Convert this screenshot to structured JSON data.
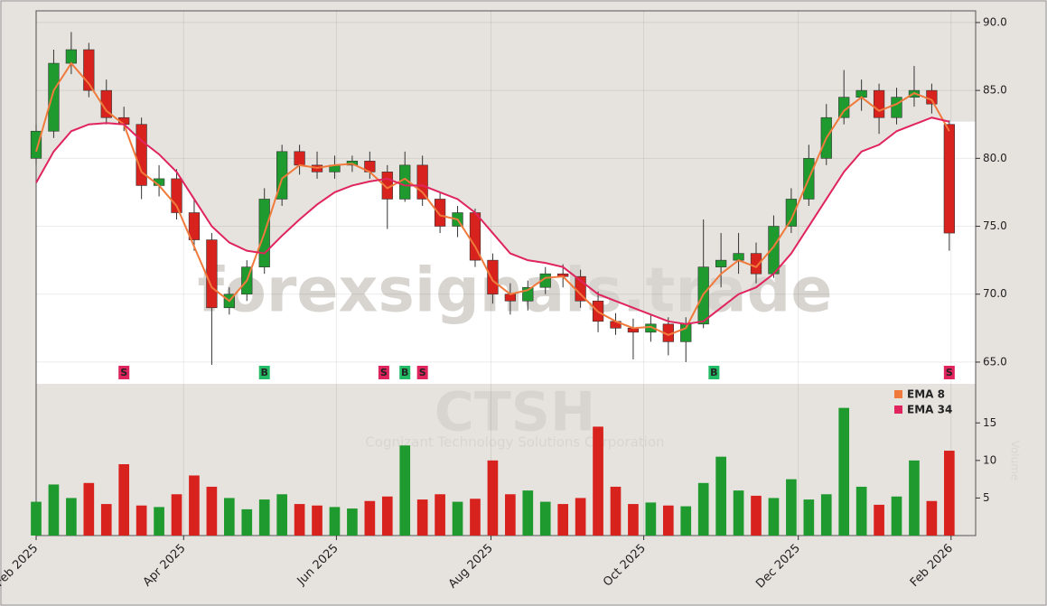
{
  "chart_data": {
    "type": "candlestick",
    "watermark": "forexsignals.trade",
    "symbol": "CTSH",
    "company": "Cognizant Technology Solutions Corporation",
    "volume_label": "Volume",
    "x": [
      0,
      1,
      2,
      3,
      4,
      5,
      6,
      7,
      8,
      9,
      10,
      11,
      12,
      13,
      14,
      15,
      16,
      17,
      18,
      19,
      20,
      21,
      22,
      23,
      24,
      25,
      26,
      27,
      28,
      29,
      30,
      31,
      32,
      33,
      34,
      35,
      36,
      37,
      38,
      39,
      40,
      41,
      42,
      43,
      44,
      45,
      46,
      47,
      48,
      49,
      50,
      51,
      52
    ],
    "open": [
      80,
      82,
      87,
      88,
      85,
      83,
      82.5,
      78,
      78.5,
      76,
      74,
      69,
      70,
      72,
      77,
      80.5,
      79.5,
      79,
      79.5,
      79.8,
      79,
      77,
      79.5,
      77,
      75,
      76,
      72.5,
      70,
      69.5,
      70.5,
      71.5,
      71.3,
      69.5,
      68,
      67.5,
      67.2,
      67.8,
      66.5,
      67.8,
      72,
      72.5,
      73,
      71.5,
      75,
      77,
      80,
      83,
      84.5,
      85,
      83,
      84.5,
      85,
      82.5
    ],
    "high": [
      82.5,
      88,
      89.3,
      88.5,
      85.8,
      83.8,
      83,
      79.5,
      79.2,
      77,
      74.5,
      70.5,
      72.5,
      77.8,
      81,
      81,
      80.5,
      80.2,
      80.2,
      80.5,
      79.5,
      80.5,
      80.2,
      77.5,
      76.5,
      76.3,
      73,
      70.8,
      71,
      72,
      72.2,
      71.8,
      70.2,
      68.6,
      68.2,
      68.5,
      68.3,
      68.3,
      75.5,
      74.5,
      74.5,
      73.8,
      75.8,
      77.8,
      81,
      84,
      86.5,
      85.8,
      85.5,
      85.2,
      86.8,
      85.5,
      82.8
    ],
    "low": [
      79.5,
      81.5,
      86.2,
      84.5,
      82.5,
      82,
      77,
      77.2,
      75.5,
      73.2,
      64.8,
      68.5,
      69.5,
      71.5,
      76.5,
      78.8,
      78.5,
      78.5,
      79,
      78.5,
      74.8,
      76.8,
      76.5,
      74.5,
      74.2,
      72,
      69.3,
      68.5,
      68.8,
      70,
      70.5,
      69,
      67.2,
      67,
      65.2,
      66.5,
      65.5,
      65,
      67.5,
      70.5,
      71.5,
      70.8,
      71.2,
      74.5,
      76.5,
      79.5,
      82.5,
      83.5,
      81.8,
      82.5,
      83.8,
      83.3,
      73.2
    ],
    "close": [
      82,
      87,
      88,
      85,
      83,
      82.5,
      78,
      78.5,
      76,
      74,
      69,
      70,
      72,
      77,
      80.5,
      79.5,
      79,
      79.5,
      79.8,
      79,
      77,
      79.5,
      77,
      75,
      76,
      72.5,
      70,
      69.5,
      70.5,
      71.5,
      71.3,
      69.5,
      68,
      67.5,
      67.2,
      67.8,
      66.5,
      67.8,
      72,
      72.5,
      73,
      71.5,
      75,
      77,
      80,
      83,
      84.5,
      85,
      83,
      84.5,
      85,
      84,
      74.5
    ],
    "volume": [
      4.5,
      6.8,
      5,
      7,
      4.2,
      9.5,
      4,
      3.8,
      5.5,
      8,
      6.5,
      5,
      3.5,
      4.8,
      5.5,
      4.2,
      4,
      3.8,
      3.6,
      4.6,
      5.2,
      12,
      4.8,
      5.5,
      4.5,
      4.9,
      10,
      5.5,
      6,
      4.5,
      4.2,
      5,
      14.5,
      6.5,
      4.2,
      4.4,
      4,
      3.9,
      7,
      10.5,
      6,
      5.3,
      5,
      7.5,
      4.8,
      5.5,
      17,
      6.5,
      4.1,
      5.2,
      10,
      4.6,
      11.3
    ],
    "series": [
      {
        "name": "EMA 8",
        "color": "#f07a3c",
        "values": [
          80.5,
          85,
          87,
          85.5,
          83.5,
          82.5,
          79,
          78,
          76.5,
          73.5,
          70.5,
          69.5,
          71,
          74.5,
          78.5,
          79.5,
          79.3,
          79.5,
          79.6,
          79,
          77.8,
          78.5,
          77.5,
          75.8,
          75.5,
          73.5,
          71,
          70,
          70.3,
          71.2,
          71.3,
          70,
          68.7,
          68,
          67.5,
          67.6,
          67,
          67.5,
          70,
          71.5,
          72.5,
          72,
          73.5,
          75.5,
          78.5,
          81.5,
          83.5,
          84.5,
          83.5,
          84,
          84.8,
          84.3,
          82
        ]
      },
      {
        "name": "EMA 34",
        "color": "#e0245e",
        "values": [
          78.2,
          80.5,
          82,
          82.5,
          82.6,
          82.5,
          81.3,
          80.3,
          79,
          77,
          75,
          73.8,
          73.2,
          73,
          74.3,
          75.5,
          76.6,
          77.5,
          78,
          78.3,
          78.5,
          78,
          78,
          77.5,
          77,
          76,
          74.5,
          73,
          72.5,
          72.3,
          72,
          71,
          70,
          69.5,
          69,
          68.5,
          68,
          67.8,
          68,
          69,
          70,
          70.5,
          71.5,
          73,
          75,
          77,
          79,
          80.5,
          81,
          82,
          82.5,
          83,
          82.7
        ]
      }
    ],
    "signals": [
      {
        "x": 5,
        "label": "S"
      },
      {
        "x": 13,
        "label": "B"
      },
      {
        "x": 19.8,
        "label": "S"
      },
      {
        "x": 21,
        "label": "B"
      },
      {
        "x": 22,
        "label": "S"
      },
      {
        "x": 38.6,
        "label": "B"
      },
      {
        "x": 52,
        "label": "S"
      }
    ],
    "xlim": [
      0,
      53.5
    ],
    "xticks": [
      {
        "value": 0,
        "label": "Feb 2025"
      },
      {
        "value": 8.4,
        "label": "Apr 2025"
      },
      {
        "value": 17.1,
        "label": "Jun 2025"
      },
      {
        "value": 25.9,
        "label": "Aug 2025"
      },
      {
        "value": 34.6,
        "label": "Oct 2025"
      },
      {
        "value": 43.4,
        "label": "Dec 2025"
      },
      {
        "value": 52.1,
        "label": "Feb 2026"
      }
    ],
    "ylim": [
      63.4,
      90.86
    ],
    "yticks": [
      {
        "value": 65,
        "label": "65.0"
      },
      {
        "value": 70,
        "label": "70.0"
      },
      {
        "value": 75,
        "label": "75.0"
      },
      {
        "value": 80,
        "label": "80.0"
      },
      {
        "value": 85,
        "label": "85.0"
      },
      {
        "value": 90,
        "label": "90.0"
      }
    ],
    "y2lim": [
      0,
      19
    ],
    "y2ticks": [
      5,
      10,
      15
    ],
    "up_color": "#1f9a2e",
    "down_color": "#d8221e",
    "grid": true
  }
}
